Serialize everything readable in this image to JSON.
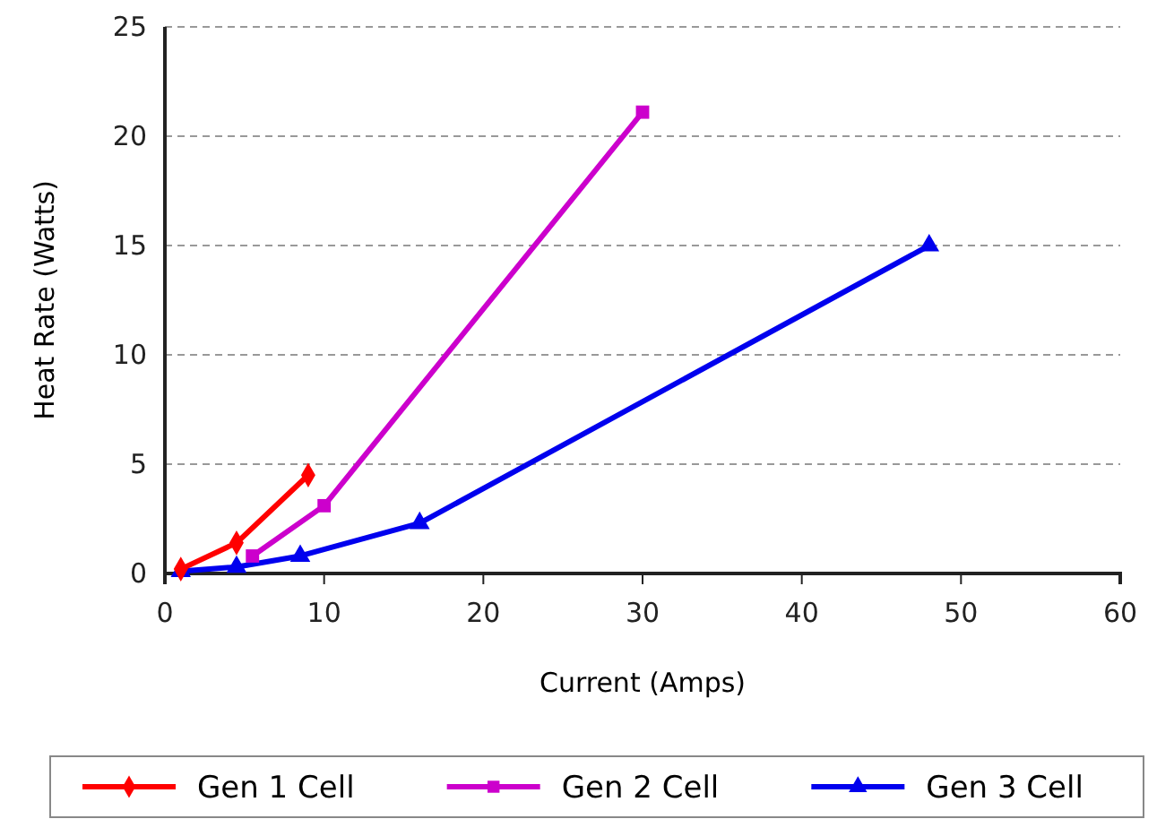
{
  "chart_data": {
    "type": "line",
    "xlabel": "Current (Amps)",
    "ylabel": "Heat Rate (Watts)",
    "xlim": [
      0,
      60
    ],
    "xticks": [
      0,
      10,
      20,
      30,
      40,
      50,
      60
    ],
    "ylim": [
      0,
      25
    ],
    "yticks": [
      0,
      5,
      10,
      15,
      20,
      25
    ],
    "grid": "y",
    "legend": "bottom",
    "line_style": "solid",
    "series": [
      {
        "name": "Gen 1 Cell",
        "color": "#ff0000",
        "marker": "diamond",
        "x": [
          1,
          4.5,
          9
        ],
        "values": [
          0.2,
          1.4,
          4.5
        ]
      },
      {
        "name": "Gen 2 Cell",
        "color": "#cc00cc",
        "marker": "square",
        "x": [
          5.5,
          10,
          30
        ],
        "values": [
          0.8,
          3.1,
          21.1
        ]
      },
      {
        "name": "Gen 3 Cell",
        "color": "#0000ee",
        "marker": "triangle",
        "x": [
          1,
          4.5,
          8.5,
          16,
          48
        ],
        "values": [
          0.1,
          0.3,
          0.8,
          2.3,
          15
        ]
      }
    ]
  }
}
